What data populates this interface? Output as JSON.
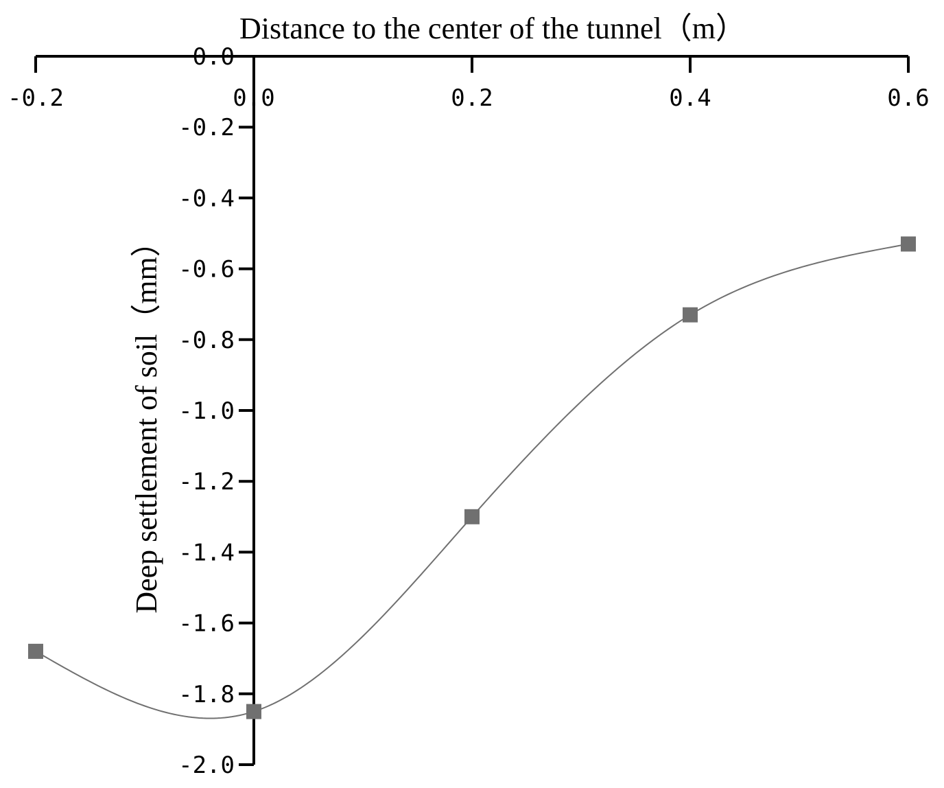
{
  "chart_data": {
    "type": "line",
    "xlabel": "Distance to the center of the tunnel（m）",
    "ylabel": "Deep settlement of soil（mm）",
    "x_axis_position": "top",
    "xlim": [
      -0.2,
      0.6
    ],
    "ylim": [
      -2.0,
      0.0
    ],
    "x_ticks": [
      -0.2,
      0.0,
      0.2,
      0.4,
      0.6
    ],
    "x_tick_labels": [
      "-0.2",
      "0.0",
      "0.2",
      "0.4",
      "0.6"
    ],
    "y_ticks": [
      0.0,
      -0.2,
      -0.4,
      -0.6,
      -0.8,
      -1.0,
      -1.2,
      -1.4,
      -1.6,
      -1.8,
      -2.0
    ],
    "y_tick_labels": [
      "0.0",
      "-0.2",
      "-0.4",
      "-0.6",
      "-0.8",
      "-1.0",
      "-1.2",
      "-1.4",
      "-1.6",
      "-1.8",
      "-2.0"
    ],
    "grid": false,
    "line_style": "smooth",
    "marker": "square",
    "series_color": "#707070",
    "series": [
      {
        "x": [
          -0.2,
          0.0,
          0.2,
          0.4,
          0.6
        ],
        "y": [
          -1.68,
          -1.85,
          -1.3,
          -0.73,
          -0.53
        ]
      }
    ]
  }
}
